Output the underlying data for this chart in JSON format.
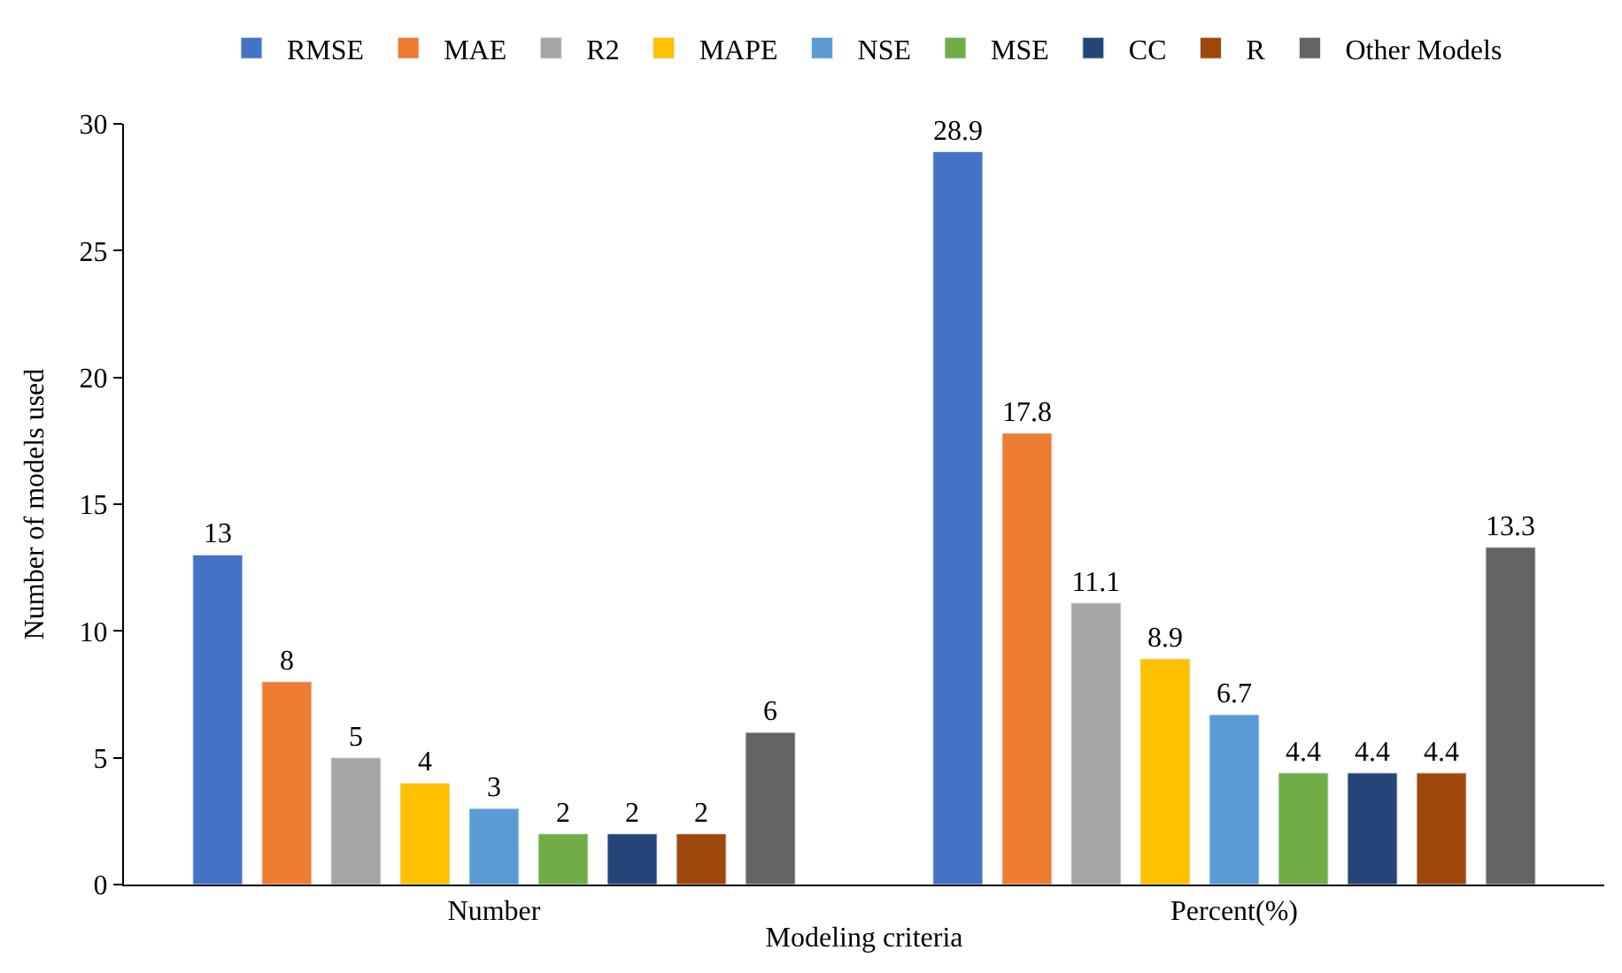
{
  "chart_data": {
    "type": "bar",
    "xlabel": "Modeling criteria",
    "ylabel": "Number of models used",
    "categories": [
      "Number",
      "Percent(%)"
    ],
    "series": [
      {
        "name": "RMSE",
        "color": "#4472c4",
        "values": [
          13,
          28.9
        ]
      },
      {
        "name": "MAE",
        "color": "#ed7d31",
        "values": [
          8,
          17.8
        ]
      },
      {
        "name": "R2",
        "color": "#a5a5a5",
        "values": [
          5,
          11.1
        ]
      },
      {
        "name": "MAPE",
        "color": "#ffc000",
        "values": [
          4,
          8.9
        ]
      },
      {
        "name": "NSE",
        "color": "#5b9bd5",
        "values": [
          3,
          6.7
        ]
      },
      {
        "name": "MSE",
        "color": "#70ad47",
        "values": [
          2,
          4.4
        ]
      },
      {
        "name": "CC",
        "color": "#264478",
        "values": [
          2,
          4.4
        ]
      },
      {
        "name": "R",
        "color": "#9e480e",
        "values": [
          2,
          4.4
        ]
      },
      {
        "name": "Other Models",
        "color": "#636363",
        "values": [
          6,
          13.3
        ]
      }
    ],
    "ylim": [
      0,
      30
    ],
    "yticks": [
      0,
      5,
      10,
      15,
      20,
      25,
      30
    ],
    "data_labels": true,
    "legend": "top"
  }
}
